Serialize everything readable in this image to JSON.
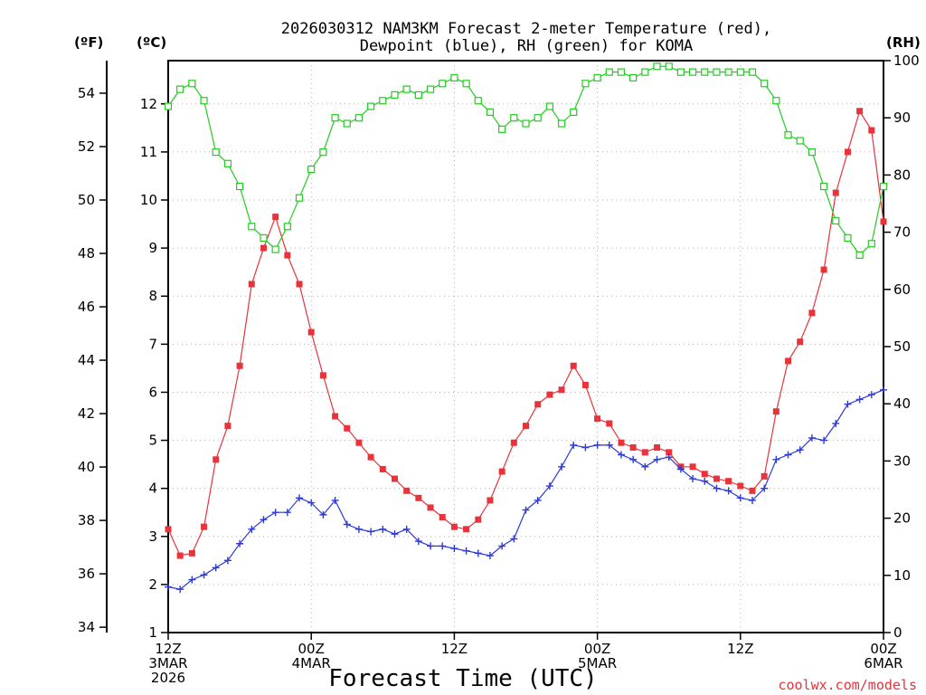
{
  "chart_data": {
    "type": "line",
    "title_line1": "2026030312 NAM3KM Forecast 2-meter Temperature (red),",
    "title_line2": "Dewpoint (blue), RH (green) for KOMA",
    "xlabel": "Forecast Time (UTC)",
    "credit": "coolwx.com/models",
    "axis_units": {
      "fahrenheit": "(ºF)",
      "celsius": "(ºC)",
      "rh": "(RH)"
    },
    "x_range_hours": [
      0,
      60
    ],
    "x_ticks": [
      {
        "hour": 0,
        "lines": [
          "12Z",
          "3MAR",
          "2026"
        ]
      },
      {
        "hour": 12,
        "lines": [
          "00Z",
          "4MAR"
        ]
      },
      {
        "hour": 24,
        "lines": [
          "12Z"
        ]
      },
      {
        "hour": 36,
        "lines": [
          "00Z",
          "5MAR"
        ]
      },
      {
        "hour": 48,
        "lines": [
          "12Z"
        ]
      },
      {
        "hour": 60,
        "lines": [
          "00Z",
          "6MAR"
        ]
      }
    ],
    "celsius_range": [
      1,
      12.9
    ],
    "celsius_ticks": [
      "1",
      "2",
      "3",
      "4",
      "5",
      "6",
      "7",
      "8",
      "9",
      "10",
      "11",
      "12"
    ],
    "fahrenheit_ticks": [
      "34",
      "36",
      "38",
      "40",
      "42",
      "44",
      "46",
      "48",
      "50",
      "52",
      "54"
    ],
    "rh_range": [
      0,
      100
    ],
    "rh_ticks": [
      "0",
      "10",
      "20",
      "30",
      "40",
      "50",
      "60",
      "70",
      "80",
      "90",
      "100"
    ],
    "colors": {
      "temperature": "#e8333a",
      "dewpoint": "#2d3ad6",
      "rh": "#22cc22",
      "credit": "#e8333a",
      "grid": "#b0b0b0"
    },
    "series": [
      {
        "name": "Temperature",
        "units": "C",
        "x": [
          0,
          1,
          2,
          3,
          4,
          5,
          6,
          7,
          8,
          9,
          10,
          11,
          12,
          13,
          14,
          15,
          16,
          17,
          18,
          19,
          20,
          21,
          22,
          23,
          24,
          25,
          26,
          27,
          28,
          29,
          30,
          31,
          32,
          33,
          34,
          35,
          36,
          37,
          38,
          39,
          40,
          41,
          42,
          43,
          44,
          45,
          46,
          47,
          48,
          49,
          50,
          51,
          52,
          53,
          54,
          55,
          56,
          57,
          58,
          59,
          60
        ],
        "values": [
          3.15,
          2.6,
          2.65,
          3.2,
          4.6,
          5.3,
          6.55,
          8.25,
          9.0,
          9.65,
          8.85,
          8.25,
          7.25,
          6.35,
          5.5,
          5.25,
          4.95,
          4.65,
          4.4,
          4.2,
          3.95,
          3.8,
          3.6,
          3.4,
          3.2,
          3.15,
          3.35,
          3.75,
          4.35,
          4.95,
          5.3,
          5.75,
          5.95,
          6.05,
          6.55,
          6.15,
          5.45,
          5.35,
          4.95,
          4.85,
          4.75,
          4.85,
          4.75,
          4.45,
          4.45,
          4.3,
          4.2,
          4.15,
          4.05,
          3.95,
          4.25,
          5.6,
          6.65,
          7.05,
          7.65,
          8.55,
          10.15,
          11.0,
          11.85,
          11.45,
          9.55
        ]
      },
      {
        "name": "Dewpoint",
        "units": "C",
        "x": [
          0,
          1,
          2,
          3,
          4,
          5,
          6,
          7,
          8,
          9,
          10,
          11,
          12,
          13,
          14,
          15,
          16,
          17,
          18,
          19,
          20,
          21,
          22,
          23,
          24,
          25,
          26,
          27,
          28,
          29,
          30,
          31,
          32,
          33,
          34,
          35,
          36,
          37,
          38,
          39,
          40,
          41,
          42,
          43,
          44,
          45,
          46,
          47,
          48,
          49,
          50,
          51,
          52,
          53,
          54,
          55,
          56,
          57,
          58,
          59,
          60
        ],
        "values": [
          1.95,
          1.9,
          2.1,
          2.2,
          2.35,
          2.5,
          2.85,
          3.15,
          3.35,
          3.5,
          3.5,
          3.8,
          3.7,
          3.45,
          3.75,
          3.25,
          3.15,
          3.1,
          3.15,
          3.05,
          3.15,
          2.9,
          2.8,
          2.8,
          2.75,
          2.7,
          2.65,
          2.6,
          2.8,
          2.95,
          3.55,
          3.75,
          4.05,
          4.45,
          4.9,
          4.85,
          4.9,
          4.9,
          4.7,
          4.6,
          4.45,
          4.6,
          4.65,
          4.4,
          4.2,
          4.15,
          4.0,
          3.95,
          3.8,
          3.75,
          4.0,
          4.6,
          4.7,
          4.8,
          5.05,
          5.0,
          5.35,
          5.75,
          5.85,
          5.95,
          6.05
        ]
      },
      {
        "name": "RH",
        "units": "%",
        "x": [
          0,
          1,
          2,
          3,
          4,
          5,
          6,
          7,
          8,
          9,
          10,
          11,
          12,
          13,
          14,
          15,
          16,
          17,
          18,
          19,
          20,
          21,
          22,
          23,
          24,
          25,
          26,
          27,
          28,
          29,
          30,
          31,
          32,
          33,
          34,
          35,
          36,
          37,
          38,
          39,
          40,
          41,
          42,
          43,
          44,
          45,
          46,
          47,
          48,
          49,
          50,
          51,
          52,
          53,
          54,
          55,
          56,
          57,
          58,
          59,
          60
        ],
        "values": [
          92,
          95,
          96,
          93,
          84,
          82,
          78,
          71,
          69,
          67,
          71,
          76,
          81,
          84,
          90,
          89,
          90,
          92,
          93,
          94,
          95,
          94,
          95,
          96,
          97,
          96,
          93,
          91,
          88,
          90,
          89,
          90,
          92,
          89,
          91,
          96,
          97,
          98,
          98,
          97,
          98,
          99,
          99,
          98,
          98,
          98,
          98,
          98,
          98,
          98,
          96,
          93,
          87,
          86,
          84,
          78,
          72,
          69,
          66,
          68,
          78
        ]
      }
    ]
  }
}
